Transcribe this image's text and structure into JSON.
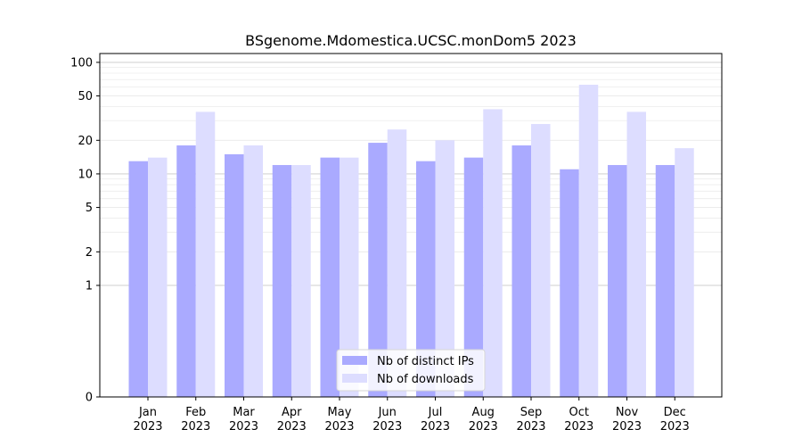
{
  "chart_data": {
    "type": "bar",
    "title": "BSgenome.Mdomestica.UCSC.monDom5 2023",
    "xlabel": "",
    "ylabel": "",
    "yscale": "symlog",
    "ylim": [
      0,
      120
    ],
    "yticks": [
      0,
      1,
      2,
      5,
      10,
      20,
      50,
      100
    ],
    "grid": true,
    "legend": "bottom-center",
    "categories": [
      {
        "month": "Jan",
        "year": "2023"
      },
      {
        "month": "Feb",
        "year": "2023"
      },
      {
        "month": "Mar",
        "year": "2023"
      },
      {
        "month": "Apr",
        "year": "2023"
      },
      {
        "month": "May",
        "year": "2023"
      },
      {
        "month": "Jun",
        "year": "2023"
      },
      {
        "month": "Jul",
        "year": "2023"
      },
      {
        "month": "Aug",
        "year": "2023"
      },
      {
        "month": "Sep",
        "year": "2023"
      },
      {
        "month": "Oct",
        "year": "2023"
      },
      {
        "month": "Nov",
        "year": "2023"
      },
      {
        "month": "Dec",
        "year": "2023"
      }
    ],
    "series": [
      {
        "name": "Nb of distinct IPs",
        "color": "#aaaaff",
        "values": [
          13,
          18,
          15,
          12,
          14,
          19,
          13,
          14,
          18,
          11,
          12,
          12
        ]
      },
      {
        "name": "Nb of downloads",
        "color": "#ddddff",
        "values": [
          14,
          36,
          18,
          12,
          14,
          25,
          20,
          38,
          28,
          63,
          36,
          17
        ]
      }
    ]
  }
}
